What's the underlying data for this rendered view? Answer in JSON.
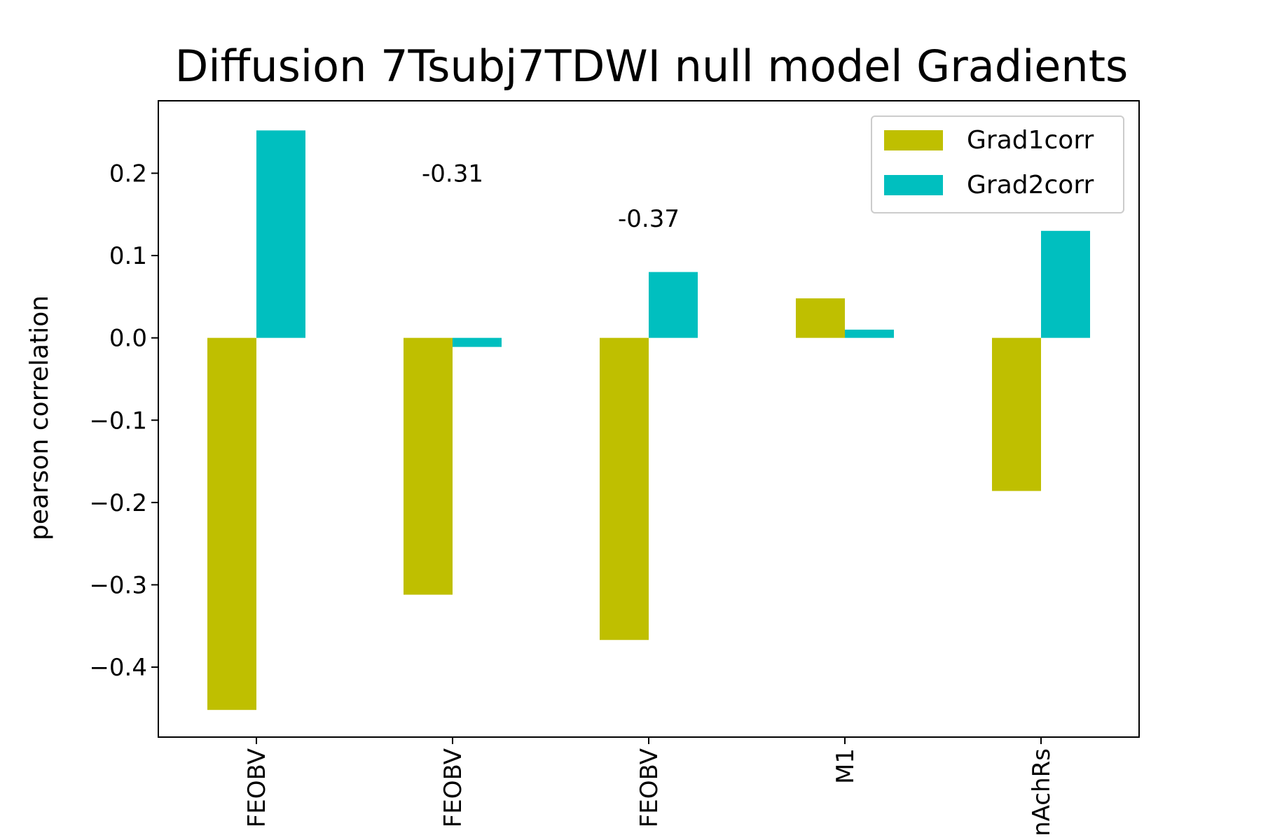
{
  "chart_data": {
    "type": "bar",
    "title": "Diffusion 7Tsubj7TDWI null model Gradients",
    "xlabel": "",
    "ylabel": "pearson correlation",
    "categories": [
      "FEOBV",
      "FEOBV",
      "FEOBV",
      "M1",
      "nAchRs"
    ],
    "series": [
      {
        "name": "Grad1corr",
        "values": [
          -0.452,
          -0.312,
          -0.367,
          0.048,
          -0.186
        ],
        "color": "#bfbf00"
      },
      {
        "name": "Grad2corr",
        "values": [
          0.252,
          -0.011,
          0.08,
          0.01,
          0.13
        ],
        "color": "#00bfbf"
      }
    ],
    "ylim": [
      -0.485,
      0.288
    ],
    "yticks": [
      0.2,
      0.1,
      0.0,
      -0.1,
      -0.2,
      -0.3,
      -0.4
    ],
    "ytick_labels": [
      "0.2",
      "0.1",
      "0.0",
      "−0.1",
      "−0.2",
      "−0.3",
      "−0.4"
    ],
    "annotations": [
      {
        "text": "-0.31",
        "x": 1.0,
        "y": 0.2
      },
      {
        "text": "-0.37",
        "x": 2.0,
        "y": 0.145
      }
    ],
    "legend_position": "top-right",
    "grid": false
  }
}
